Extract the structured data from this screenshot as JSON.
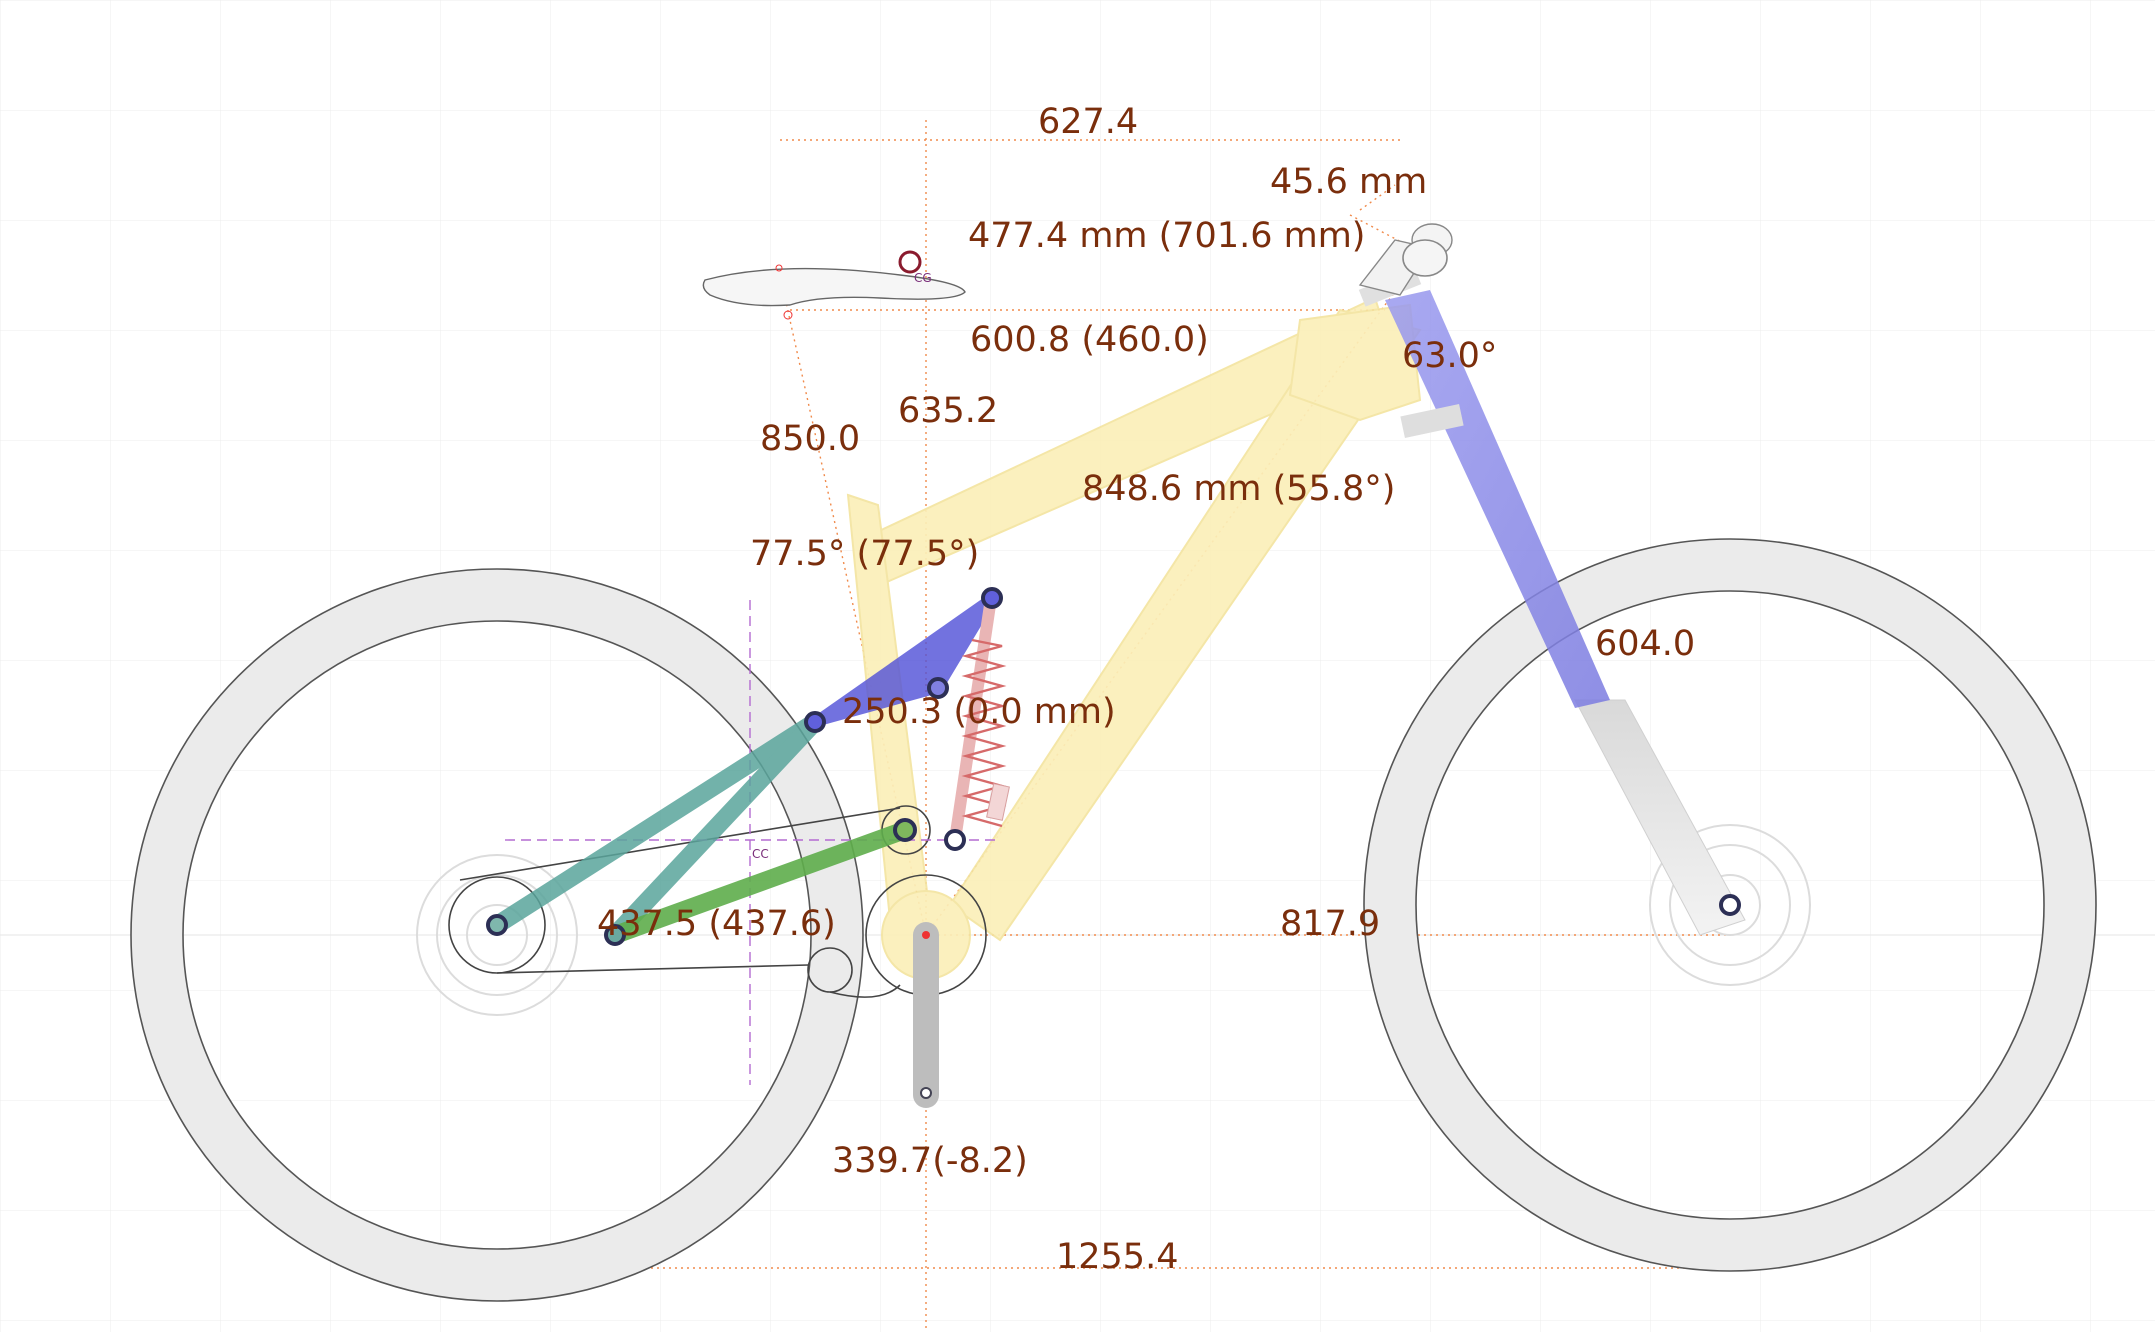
{
  "dimensions": {
    "reach_top": "627.4",
    "stem_length": "45.6 mm",
    "front_center_bar": "477.4 mm (701.6 mm)",
    "effective_top_tube": "600.8 (460.0)",
    "stack": "635.2",
    "head_angle": "63.0°",
    "seat_height": "850.0",
    "down_tube": "848.6 mm (55.8°)",
    "seat_angle": "77.5° (77.5°)",
    "fork_length": "604.0",
    "shock_length": "250.3 (0.0 mm)",
    "chainstay": "437.5 (437.6)",
    "front_center": "817.9",
    "bb_height": "339.7(-8.2)",
    "wheelbase": "1255.4"
  },
  "markers": {
    "center_of_gravity": "CG",
    "instant_center": "CC"
  },
  "colors": {
    "frame": "#fbefb9",
    "rocker": "#5050d8",
    "seatstay": "#5aa59c",
    "chainstay_link": "#5fae4c",
    "fork": "#8a8ae6",
    "spring": "#d66a6a",
    "tire": "#ebebeb",
    "dimension_text": "#7a2e0c",
    "guide_line": "#f08a4b"
  }
}
